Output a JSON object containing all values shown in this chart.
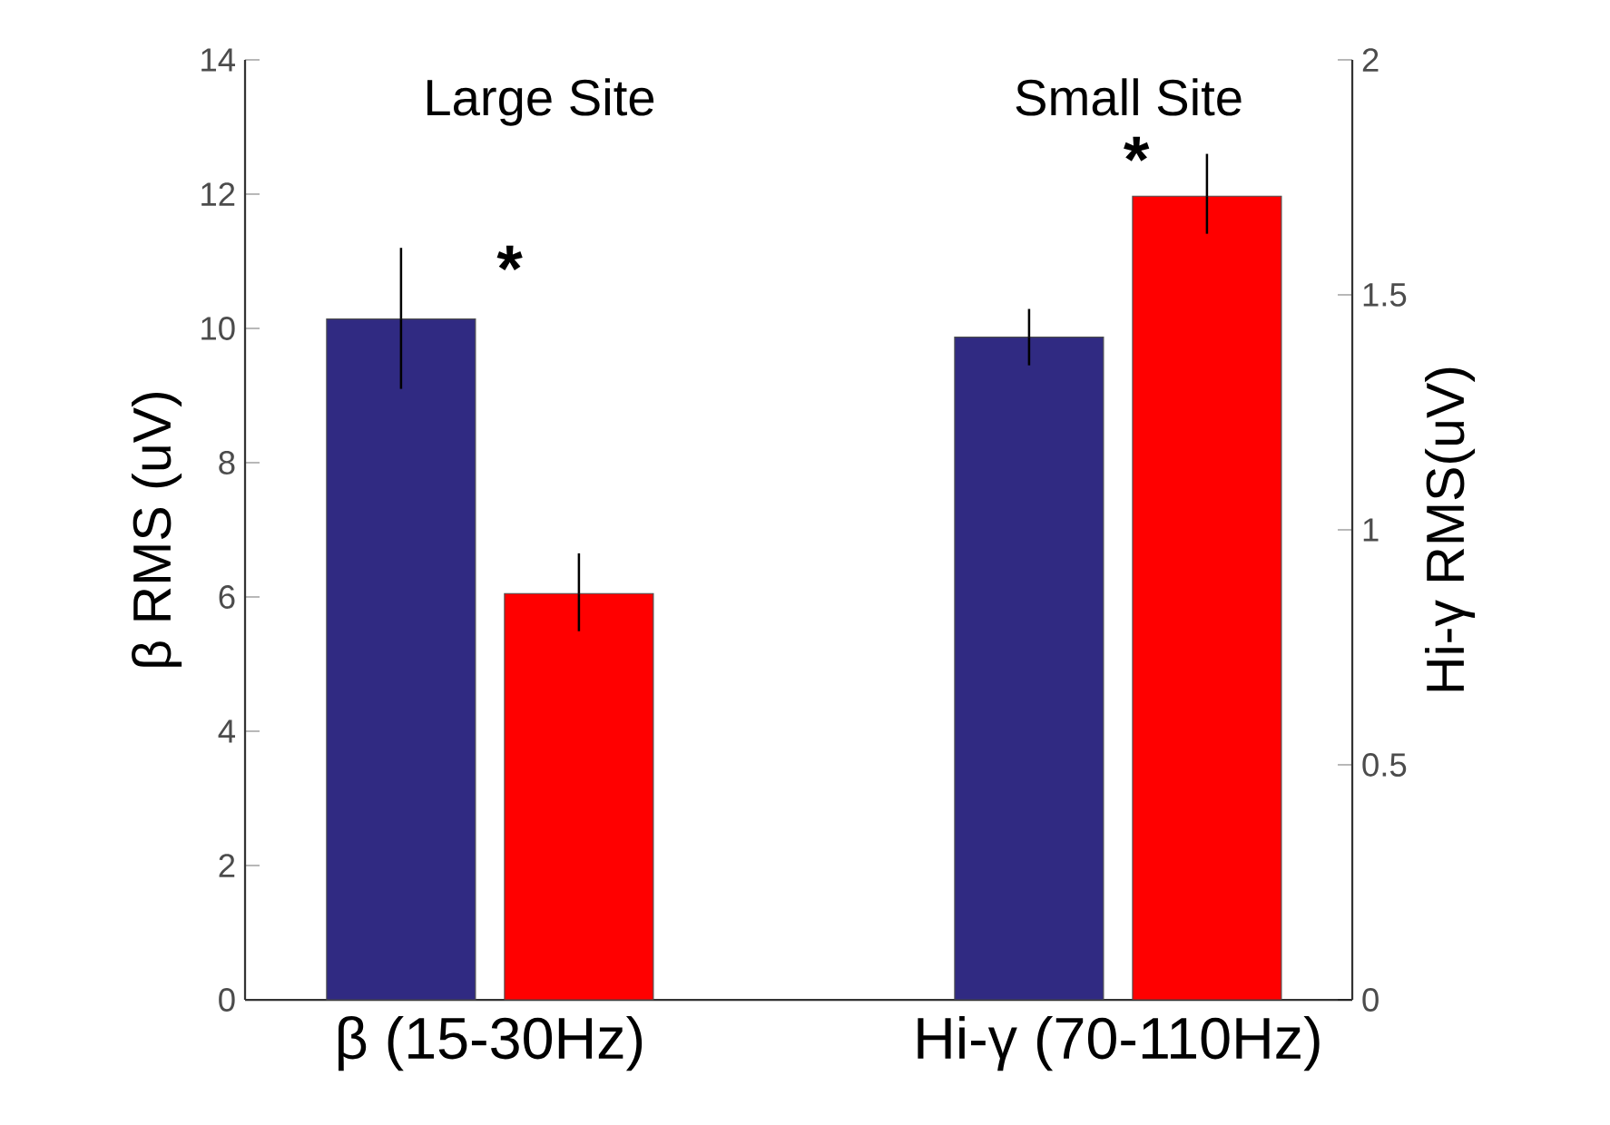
{
  "chart_data": {
    "type": "bar",
    "categories": [
      "β (15-30Hz)",
      "Hi-γ (70-110Hz)"
    ],
    "ylabel": "β RMS (uV)",
    "y2label": "Hi-γ  RMS(uV)",
    "ylim": [
      0,
      14
    ],
    "yticks": [
      0,
      2,
      4,
      6,
      8,
      10,
      12,
      14
    ],
    "y2lim": [
      0,
      2
    ],
    "y2ticks": [
      0,
      0.5,
      1,
      1.5,
      2
    ],
    "series": [
      {
        "color": "#302a82",
        "values": [
          10.14,
          null
        ],
        "errors": [
          [
            9.1,
            11.2
          ],
          null
        ]
      },
      {
        "color": "#ff0000",
        "values": [
          6.05,
          null
        ],
        "errors": [
          [
            5.49,
            6.65
          ],
          null
        ]
      },
      {
        "color": "#302a82",
        "axis": "y2",
        "values": [
          null,
          1.41
        ],
        "errors": [
          null,
          [
            1.35,
            1.47
          ]
        ]
      },
      {
        "color": "#ff0000",
        "axis": "y2",
        "values": [
          null,
          1.71
        ],
        "errors": [
          null,
          [
            1.63,
            1.8
          ]
        ]
      }
    ],
    "annotations": [
      "Large Site",
      "Small Site",
      "*",
      "*"
    ]
  }
}
